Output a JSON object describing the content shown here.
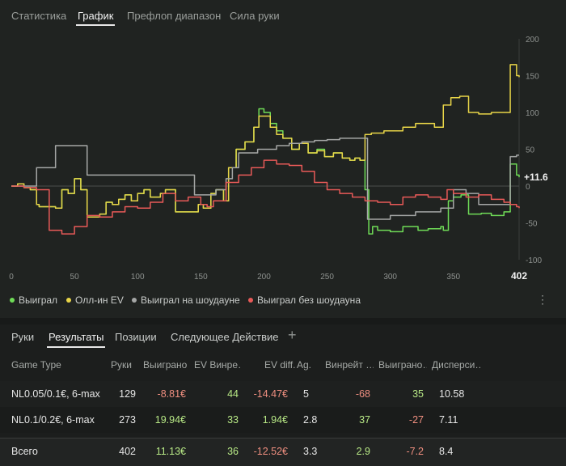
{
  "tabs": [
    "Статистика",
    "График",
    "Префлоп диапазон",
    "Сила руки"
  ],
  "active_tab": "График",
  "colors": {
    "won": "#6fdc57",
    "allin_ev": "#e8d548",
    "showdown": "#a5a7a6",
    "non_showdown": "#e85a58",
    "positive": "#b8e986",
    "negative": "#f08f80"
  },
  "chart_data": {
    "type": "line",
    "x_ticks": [
      "0",
      "50",
      "100",
      "150",
      "200",
      "250",
      "300",
      "350",
      "402"
    ],
    "y_ticks": [
      "200",
      "150",
      "100",
      "50",
      "0",
      "-50",
      "-100"
    ],
    "xlim": [
      0,
      402
    ],
    "ylim": [
      -100,
      200
    ],
    "end_label": "+11.6",
    "series": [
      {
        "name": "Выиграл",
        "color": "#6fdc57",
        "x": [
          0,
          5,
          10,
          15,
          20,
          22,
          28,
          35,
          40,
          45,
          50,
          55,
          60,
          70,
          75,
          80,
          85,
          90,
          95,
          100,
          105,
          110,
          118,
          122,
          130,
          140,
          148,
          152,
          158,
          162,
          168,
          172,
          178,
          185,
          192,
          196,
          200,
          205,
          210,
          215,
          222,
          228,
          235,
          242,
          248,
          255,
          262,
          268,
          272,
          276,
          280,
          283,
          286,
          290,
          300,
          310,
          322,
          330,
          340,
          342,
          346,
          350,
          356,
          362,
          372,
          380,
          390,
          395,
          400,
          402
        ],
        "y": [
          0,
          3,
          -2,
          -5,
          -25,
          -28,
          -28,
          -30,
          -5,
          -10,
          10,
          -5,
          -42,
          -38,
          -22,
          -25,
          -18,
          -12,
          -20,
          -10,
          -5,
          -15,
          -10,
          -5,
          -35,
          -35,
          -25,
          -30,
          -10,
          -5,
          -20,
          25,
          50,
          60,
          80,
          105,
          100,
          85,
          75,
          65,
          50,
          58,
          45,
          50,
          40,
          45,
          38,
          35,
          38,
          35,
          -5,
          -65,
          -55,
          -60,
          -62,
          -55,
          -60,
          -58,
          -55,
          -60,
          -20,
          -15,
          -12,
          -38,
          -37,
          -40,
          -35,
          30,
          15,
          12
        ]
      },
      {
        "name": "Олл-ин EV",
        "color": "#e8d548",
        "x": [
          0,
          5,
          10,
          15,
          20,
          22,
          28,
          35,
          40,
          45,
          50,
          55,
          60,
          70,
          75,
          80,
          85,
          90,
          95,
          100,
          105,
          110,
          118,
          122,
          130,
          140,
          148,
          152,
          158,
          162,
          168,
          172,
          178,
          185,
          192,
          196,
          200,
          205,
          210,
          215,
          222,
          228,
          235,
          242,
          248,
          255,
          262,
          268,
          272,
          276,
          280,
          285,
          295,
          310,
          320,
          335,
          342,
          348,
          355,
          362,
          370,
          380,
          390,
          395,
          400,
          402
        ],
        "y": [
          0,
          3,
          -2,
          -5,
          -25,
          -28,
          -28,
          -30,
          -5,
          -10,
          10,
          -5,
          -42,
          -38,
          -22,
          -25,
          -18,
          -12,
          -20,
          -10,
          -5,
          -15,
          -10,
          -5,
          -35,
          -35,
          -25,
          -30,
          -10,
          -5,
          -20,
          25,
          50,
          60,
          80,
          95,
          95,
          80,
          70,
          65,
          50,
          58,
          45,
          48,
          40,
          45,
          38,
          35,
          38,
          35,
          70,
          72,
          75,
          80,
          85,
          80,
          110,
          120,
          122,
          100,
          98,
          100,
          100,
          165,
          150,
          148
        ]
      },
      {
        "name": "Выиграл на шоудауне",
        "color": "#a5a7a6",
        "x": [
          0,
          10,
          20,
          30,
          35,
          40,
          50,
          60,
          65,
          70,
          80,
          90,
          100,
          110,
          120,
          130,
          140,
          145,
          150,
          155,
          162,
          170,
          175,
          180,
          190,
          195,
          200,
          210,
          220,
          230,
          240,
          250,
          260,
          270,
          278,
          282,
          290,
          300,
          310,
          320,
          330,
          340,
          345,
          350,
          360,
          370,
          380,
          392,
          395,
          400,
          402
        ],
        "y": [
          0,
          0,
          25,
          25,
          55,
          55,
          55,
          15,
          15,
          15,
          15,
          15,
          15,
          15,
          15,
          15,
          15,
          -12,
          -12,
          -12,
          -5,
          10,
          25,
          45,
          45,
          50,
          50,
          55,
          58,
          60,
          62,
          63,
          65,
          65,
          65,
          -45,
          -45,
          -40,
          -40,
          -35,
          -35,
          -30,
          -30,
          -5,
          -10,
          -25,
          -25,
          -25,
          40,
          42,
          42
        ]
      },
      {
        "name": "Выиграл без шоудауна",
        "color": "#e85a58",
        "x": [
          0,
          10,
          20,
          30,
          40,
          50,
          60,
          70,
          80,
          90,
          100,
          110,
          120,
          130,
          140,
          150,
          155,
          160,
          170,
          180,
          190,
          200,
          210,
          220,
          230,
          240,
          250,
          260,
          270,
          280,
          290,
          300,
          310,
          320,
          330,
          340,
          345,
          350,
          360,
          370,
          380,
          390,
          395,
          400,
          402
        ],
        "y": [
          0,
          -2,
          -5,
          -60,
          -65,
          -55,
          -40,
          -42,
          -35,
          -28,
          -30,
          -22,
          -10,
          -20,
          -15,
          -25,
          -28,
          -20,
          5,
          15,
          25,
          35,
          30,
          28,
          20,
          5,
          -5,
          -10,
          -15,
          -20,
          -22,
          -25,
          -15,
          -12,
          -15,
          -18,
          -5,
          -10,
          -15,
          -12,
          -18,
          -22,
          -25,
          -28,
          -30
        ]
      }
    ]
  },
  "legend": [
    {
      "label": "Выиграл",
      "color": "#6fdc57"
    },
    {
      "label": "Олл-ин EV",
      "color": "#e8d548"
    },
    {
      "label": "Выиграл на шоудауне",
      "color": "#a5a7a6"
    },
    {
      "label": "Выиграл без шоудауна",
      "color": "#e85a58"
    }
  ],
  "bottom_tabs": [
    "Руки",
    "Результаты",
    "Позиции",
    "Следующее Действие"
  ],
  "active_bottom_tab": "Результаты",
  "add_tab": "+",
  "menu_icon": "⋮",
  "table": {
    "headers": [
      "Game Type",
      "Руки",
      "Выиграно",
      "EV Винре…",
      "EV diff.",
      "Ag.",
      "Винрейт …",
      "Выиграно…",
      "Дисперси…"
    ],
    "rows": [
      {
        "game": "NL0.05/0.1€, 6-max",
        "hands": "129",
        "won": "-8.81€",
        "ev_winrate": "44",
        "ev_diff": "-14.47€",
        "ag": "5",
        "winrate": "-68",
        "won2": "35",
        "variance": "10.58"
      },
      {
        "game": "NL0.1/0.2€, 6-max",
        "hands": "273",
        "won": "19.94€",
        "ev_winrate": "33",
        "ev_diff": "1.94€",
        "ag": "2.8",
        "winrate": "37",
        "won2": "-27",
        "variance": "7.11"
      }
    ],
    "total": {
      "game": "Всего",
      "hands": "402",
      "won": "11.13€",
      "ev_winrate": "36",
      "ev_diff": "-12.52€",
      "ag": "3.3",
      "winrate": "2.9",
      "won2": "-7.2",
      "variance": "8.4"
    }
  }
}
